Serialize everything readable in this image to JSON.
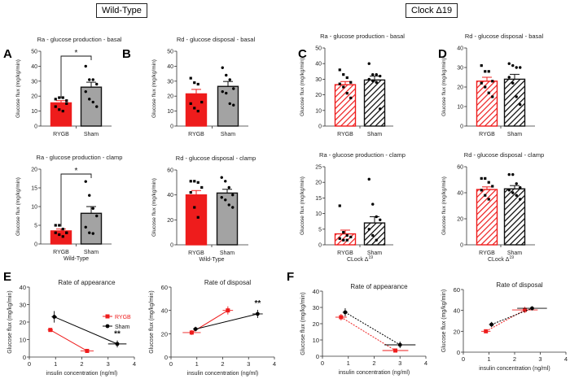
{
  "headers": {
    "wild_type": "Wild-Type",
    "clock": "Clock Δ19"
  },
  "panel_letters": [
    "A",
    "B",
    "C",
    "D",
    "E",
    "F"
  ],
  "colors": {
    "rygb": "#ee1c1c",
    "sham": "#a3a3a3",
    "black": "#000000"
  },
  "chart_data": [
    {
      "id": "A-top",
      "type": "bar",
      "title": "Ra - glucose production - basal",
      "ylabel": "Glucose flux (mg/kg/min)",
      "categories": [
        "RYGB",
        "Sham"
      ],
      "ylim": [
        0,
        50
      ],
      "yticks": [
        0,
        10,
        20,
        30,
        40,
        50
      ],
      "hatched": false,
      "series": [
        {
          "name": "RYGB",
          "mean": 15.5,
          "sem": 1.5,
          "points": [
            18,
            19,
            19,
            17,
            13,
            11,
            10,
            15
          ]
        },
        {
          "name": "Sham",
          "mean": 26,
          "sem": 3.3,
          "points": [
            40,
            31,
            31,
            28,
            23,
            18,
            16,
            13
          ]
        }
      ],
      "significance": "*",
      "group_label": ""
    },
    {
      "id": "B-top",
      "type": "bar",
      "title": "Rd - glucose disposal - basal",
      "ylabel": "Glucose flux (mg/kg/min)",
      "categories": [
        "RYGB",
        "Sham"
      ],
      "ylim": [
        0,
        50
      ],
      "yticks": [
        0,
        10,
        20,
        30,
        40,
        50
      ],
      "hatched": false,
      "series": [
        {
          "name": "RYGB",
          "mean": 21.5,
          "sem": 3,
          "points": [
            32,
            29,
            28,
            16,
            15,
            12,
            10
          ]
        },
        {
          "name": "Sham",
          "mean": 26.5,
          "sem": 3.3,
          "points": [
            39,
            34,
            31,
            25,
            23,
            22,
            15,
            14
          ]
        }
      ],
      "significance": "",
      "group_label": ""
    },
    {
      "id": "A-bottom",
      "type": "bar",
      "title": "Ra - glucose production - clamp",
      "ylabel": "Glucose flux (mg/kg/min)",
      "categories": [
        "RYGB",
        "Sham"
      ],
      "ylim": [
        0,
        20
      ],
      "yticks": [
        0,
        5,
        10,
        15,
        20
      ],
      "hatched": false,
      "series": [
        {
          "name": "RYGB",
          "mean": 3.5,
          "sem": 0.5,
          "points": [
            5,
            5,
            4,
            3,
            3,
            2.5,
            2,
            3
          ]
        },
        {
          "name": "Sham",
          "mean": 8.2,
          "sem": 1.8,
          "points": [
            16.7,
            13,
            9.5,
            7.5,
            4.5,
            3,
            2.8
          ]
        }
      ],
      "significance": "*",
      "group_label": "Wild-Type"
    },
    {
      "id": "B-bottom",
      "type": "bar",
      "title": "Rd - glucose disposal - clamp",
      "ylabel": "Glucose flux (mg/kg/min)",
      "categories": [
        "RYGB",
        "Sham"
      ],
      "ylim": [
        0,
        60
      ],
      "yticks": [
        0,
        20,
        40,
        60
      ],
      "hatched": false,
      "series": [
        {
          "name": "RYGB",
          "mean": 40,
          "sem": 3.5,
          "points": [
            51,
            51,
            50,
            46,
            42,
            30,
            22
          ]
        },
        {
          "name": "Sham",
          "mean": 41.5,
          "sem": 3,
          "points": [
            54,
            51,
            46,
            40,
            38,
            36,
            32,
            30
          ]
        }
      ],
      "significance": "",
      "group_label": "Wild-Type"
    },
    {
      "id": "C-top",
      "type": "bar",
      "title": "Ra - glucose production - basal",
      "ylabel": "Glucose flux (mg/kg/min)",
      "categories": [
        "RYGB",
        "Sham"
      ],
      "ylim": [
        0,
        50
      ],
      "yticks": [
        0,
        10,
        20,
        30,
        40,
        50
      ],
      "hatched": true,
      "series": [
        {
          "name": "RYGB",
          "mean": 26.5,
          "sem": 2,
          "points": [
            36,
            33,
            31,
            28,
            27,
            25,
            21,
            18
          ]
        },
        {
          "name": "Sham",
          "mean": 29.5,
          "sem": 2.5,
          "points": [
            40,
            33,
            33,
            32,
            30,
            29,
            28,
            11
          ]
        }
      ],
      "significance": "",
      "group_label": ""
    },
    {
      "id": "D-top",
      "type": "bar",
      "title": "Rd - glucose disposal - basal",
      "ylabel": "Glucose flux (mg/kg/min)",
      "categories": [
        "RYGB",
        "Sham"
      ],
      "ylim": [
        0,
        40
      ],
      "yticks": [
        0,
        10,
        20,
        30,
        40
      ],
      "hatched": true,
      "series": [
        {
          "name": "RYGB",
          "mean": 23,
          "sem": 2,
          "points": [
            31,
            28,
            28,
            23,
            22,
            20,
            17,
            15
          ]
        },
        {
          "name": "Sham",
          "mean": 24,
          "sem": 2.5,
          "points": [
            32,
            31,
            30,
            30,
            25,
            22,
            15,
            11
          ]
        }
      ],
      "significance": "",
      "group_label": ""
    },
    {
      "id": "C-bottom",
      "type": "bar",
      "title": "Ra - glucose production - clamp",
      "ylabel": "Glucose flux (mg/kg/min)",
      "categories": [
        "RYGB",
        "Sham"
      ],
      "ylim": [
        0,
        25
      ],
      "yticks": [
        0,
        5,
        10,
        15,
        20,
        25
      ],
      "hatched": true,
      "series": [
        {
          "name": "RYGB",
          "mean": 3.5,
          "sem": 1.2,
          "points": [
            12.5,
            4,
            3,
            2.5,
            2,
            1.5,
            1.5
          ]
        },
        {
          "name": "Sham",
          "mean": 7,
          "sem": 2,
          "points": [
            21,
            13,
            9,
            8,
            5,
            3,
            1.5
          ]
        }
      ],
      "significance": "",
      "group_label": "CLock Δ19"
    },
    {
      "id": "D-bottom",
      "type": "bar",
      "title": "Rd - glucose disposal - clamp",
      "ylabel": "Glucose flux (mg/kg/min)",
      "categories": [
        "RYGB",
        "Sham"
      ],
      "ylim": [
        0,
        60
      ],
      "yticks": [
        0,
        20,
        40,
        60
      ],
      "hatched": true,
      "series": [
        {
          "name": "RYGB",
          "mean": 42.5,
          "sem": 2,
          "points": [
            51,
            51,
            48,
            45,
            42,
            38,
            35
          ]
        },
        {
          "name": "Sham",
          "mean": 43,
          "sem": 2.5,
          "points": [
            54,
            54,
            47,
            44,
            42,
            40,
            38,
            35
          ]
        }
      ],
      "significance": "",
      "group_label": "CLock Δ19"
    },
    {
      "id": "E-left",
      "type": "line",
      "title": "Rate of appearance",
      "xlabel": "insulin concentration (ng/ml)",
      "ylabel": "Glucose flux (mg/kg/min)",
      "xlim": [
        0,
        4
      ],
      "ylim": [
        0,
        40
      ],
      "xticks": [
        0,
        1,
        2,
        3,
        4
      ],
      "yticks": [
        0,
        10,
        20,
        30,
        40
      ],
      "dashed": false,
      "legend": true,
      "series": [
        {
          "name": "RYGB",
          "points": [
            {
              "x": 0.8,
              "y": 15.5,
              "xerr": 0.1,
              "yerr": 1
            },
            {
              "x": 2.2,
              "y": 3.5,
              "xerr": 0.25,
              "yerr": 0.5
            }
          ]
        },
        {
          "name": "Sham",
          "points": [
            {
              "x": 0.95,
              "y": 23,
              "xerr": 0.1,
              "yerr": 3.3
            },
            {
              "x": 3.35,
              "y": 7.5,
              "xerr": 0.35,
              "yerr": 2
            }
          ]
        }
      ],
      "significance": "**"
    },
    {
      "id": "E-right",
      "type": "line",
      "title": "Rate of disposal",
      "xlabel": "insulin concentration (ng/ml)",
      "ylabel": "Glucose flux (mg/kg/min)",
      "xlim": [
        0,
        4
      ],
      "ylim": [
        0,
        60
      ],
      "xticks": [
        0,
        1,
        2,
        3,
        4
      ],
      "yticks": [
        0,
        20,
        40,
        60
      ],
      "dashed": false,
      "legend": false,
      "series": [
        {
          "name": "RYGB",
          "points": [
            {
              "x": 0.8,
              "y": 21,
              "xerr": 0.35,
              "yerr": 2
            },
            {
              "x": 2.2,
              "y": 40,
              "xerr": 0.2,
              "yerr": 3.5
            }
          ]
        },
        {
          "name": "Sham",
          "points": [
            {
              "x": 0.95,
              "y": 24,
              "xerr": 0.1,
              "yerr": 2
            },
            {
              "x": 3.35,
              "y": 37,
              "xerr": 0.2,
              "yerr": 3.5
            }
          ]
        }
      ],
      "significance": "**"
    },
    {
      "id": "F-left",
      "type": "line",
      "title": "Rate of appearance",
      "xlabel": "insulin concentration (ng/ml)",
      "ylabel": "Glucose flux (mg/kg/min)",
      "xlim": [
        0,
        4
      ],
      "ylim": [
        0,
        40
      ],
      "xticks": [
        0,
        1,
        2,
        3,
        4
      ],
      "yticks": [
        0,
        10,
        20,
        30,
        40
      ],
      "dashed": true,
      "legend": false,
      "series": [
        {
          "name": "RYGB",
          "points": [
            {
              "x": 0.72,
              "y": 24,
              "xerr": 0.22,
              "yerr": 2
            },
            {
              "x": 2.82,
              "y": 3.5,
              "xerr": 0.5,
              "yerr": 1
            }
          ]
        },
        {
          "name": "Sham",
          "points": [
            {
              "x": 0.88,
              "y": 27,
              "xerr": 0.1,
              "yerr": 2.5
            },
            {
              "x": 3.0,
              "y": 7,
              "xerr": 0.6,
              "yerr": 2
            }
          ]
        }
      ],
      "significance": ""
    },
    {
      "id": "F-right",
      "type": "line",
      "title": "Rate of disposal",
      "xlabel": "insulin concentration (ng/ml)",
      "ylabel": "Glucose flux (mg/kg/min)",
      "xlim": [
        0,
        4
      ],
      "ylim": [
        0,
        60
      ],
      "xticks": [
        0,
        1,
        2,
        3,
        4
      ],
      "yticks": [
        0,
        20,
        40,
        60
      ],
      "dashed": true,
      "legend": false,
      "series": [
        {
          "name": "RYGB",
          "points": [
            {
              "x": 0.88,
              "y": 20,
              "xerr": 0.18,
              "yerr": 1.5
            },
            {
              "x": 2.4,
              "y": 40.5,
              "xerr": 0.5,
              "yerr": 3
            }
          ]
        },
        {
          "name": "Sham",
          "points": [
            {
              "x": 1.1,
              "y": 26.5,
              "xerr": 0.1,
              "yerr": 2.5
            },
            {
              "x": 2.68,
              "y": 42,
              "xerr": 0.58,
              "yerr": 2
            }
          ]
        }
      ],
      "significance": ""
    }
  ]
}
